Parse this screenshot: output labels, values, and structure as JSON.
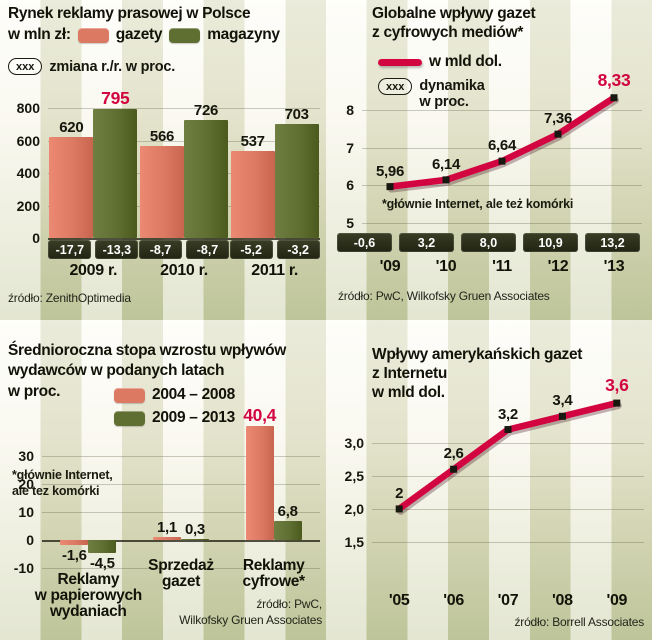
{
  "colors": {
    "salmon": "#dc7963",
    "olive": "#5f6e31",
    "accent": "#d30541",
    "dark_box": "#272b1c"
  },
  "panels": {
    "tl": {
      "title": "Rynek reklamy prasowej w Polsce",
      "subtitle": "w mln zł:",
      "legend": [
        {
          "label": "gazety"
        },
        {
          "label": "magazyny"
        }
      ],
      "note_tag": "xxx",
      "note_label": "zmiana r./r. w proc.",
      "source": "źródło: ZenithOptimedia"
    },
    "tr": {
      "title_lines": [
        "Globalne wpływy gazet",
        "z cyfrowych mediów*"
      ],
      "legend_label": "w mld dol.",
      "note_tag": "xxx",
      "note_lines": [
        "dynamika",
        "w proc."
      ],
      "footnote": "*głównie Internet, ale też komórki",
      "source": "źródło: PwC, Wilkofsky Gruen Associates"
    },
    "bl": {
      "title_lines": [
        "Średnioroczna stopa wzrostu wpływów",
        "wydawców w podanych latach",
        "w proc."
      ],
      "legend": [
        {
          "label": "2004 – 2008"
        },
        {
          "label": "2009 – 2013"
        }
      ],
      "footnote_lines": [
        "*głównie Internet,",
        "ale tez komórki"
      ],
      "source_lines": [
        "źródło: PwC,",
        "Wilkofsky Gruen Associates"
      ]
    },
    "br": {
      "title_lines": [
        "Wpływy amerykańskich gazet",
        "z Internetu",
        "w mld dol."
      ],
      "source": "źródło: Borrell Associates"
    }
  },
  "chart_data": [
    {
      "id": "press-ad-market-poland",
      "type": "bar",
      "title": "Rynek reklamy prasowej w Polsce (w mln zł)",
      "categories": [
        "2009 r.",
        "2010 r.",
        "2011 r."
      ],
      "series": [
        {
          "name": "gazety",
          "color_key": "salmon",
          "values": [
            620,
            566,
            537
          ],
          "labels": [
            "620",
            "566",
            "537"
          ]
        },
        {
          "name": "magazyny",
          "color_key": "olive",
          "values": [
            795,
            726,
            703
          ],
          "labels": [
            "795",
            "726",
            "703"
          ]
        }
      ],
      "highlight": {
        "series": 1,
        "index": 0
      },
      "yticks": [
        0,
        200,
        400,
        600,
        800
      ],
      "ylim": [
        0,
        900
      ],
      "changes_note": "zmiana r./r. w proc.",
      "changes": [
        [
          "-17,7",
          "-13,3"
        ],
        [
          "-8,7",
          "-8,7"
        ],
        [
          "-5,2",
          "-3,2"
        ]
      ]
    },
    {
      "id": "global-newspaper-digital-revenue",
      "type": "line",
      "title": "Globalne wpływy gazet z cyfrowych mediów (w mld dol.)",
      "x": [
        "'09",
        "'10",
        "'11",
        "'12",
        "'13"
      ],
      "values": [
        5.96,
        6.14,
        6.64,
        7.36,
        8.33
      ],
      "labels": [
        "5,96",
        "6,14",
        "6,64",
        "7,36",
        "8,33"
      ],
      "highlight_index": 4,
      "yticks": [
        5,
        6,
        7,
        8
      ],
      "ylim": [
        4.75,
        8.75
      ],
      "dynamics_note": "dynamika w proc.",
      "dynamics": [
        "-0,6",
        "3,2",
        "8,0",
        "10,9",
        "13,2"
      ]
    },
    {
      "id": "publisher-revenue-growth-rates",
      "type": "bar",
      "title": "Średnioroczna stopa wzrostu wpływów wydawców (w proc.)",
      "categories": [
        "Reklamy w papierowych wydaniach",
        "Sprzedaż gazet",
        "Reklamy cyfrowe*"
      ],
      "category_lines": [
        [
          "Reklamy",
          "w papierowych",
          "wydaniach"
        ],
        [
          "Sprzedaż",
          "gazet"
        ],
        [
          "Reklamy",
          "cyfrowe*"
        ]
      ],
      "series": [
        {
          "name": "2004 – 2008",
          "color_key": "salmon",
          "values": [
            -1.6,
            1.1,
            40.4
          ],
          "labels": [
            "-1,6",
            "1,1",
            "40,4"
          ]
        },
        {
          "name": "2009 – 2013",
          "color_key": "olive",
          "values": [
            -4.5,
            0.3,
            6.8
          ],
          "labels": [
            "-4,5",
            "0,3",
            "6,8"
          ]
        }
      ],
      "highlight": {
        "series": 0,
        "index": 2
      },
      "yticks": [
        -10,
        0,
        10,
        20,
        30
      ],
      "ylim": [
        -12,
        44
      ]
    },
    {
      "id": "us-newspaper-internet-revenue",
      "type": "line",
      "title": "Wpływy amerykańskich gazet z Internetu (w mld dol.)",
      "x": [
        "'05",
        "'06",
        "'07",
        "'08",
        "'09"
      ],
      "values": [
        2,
        2.6,
        3.2,
        3.4,
        3.6
      ],
      "labels": [
        "2",
        "2,6",
        "3,2",
        "3,4",
        "3,6"
      ],
      "highlight_index": 4,
      "yticks": [
        1.5,
        2.0,
        2.5,
        3.0
      ],
      "ytick_labels": [
        "1,5",
        "2,0",
        "2,5",
        "3,0"
      ],
      "ylim": [
        1.5,
        4.1
      ]
    }
  ]
}
